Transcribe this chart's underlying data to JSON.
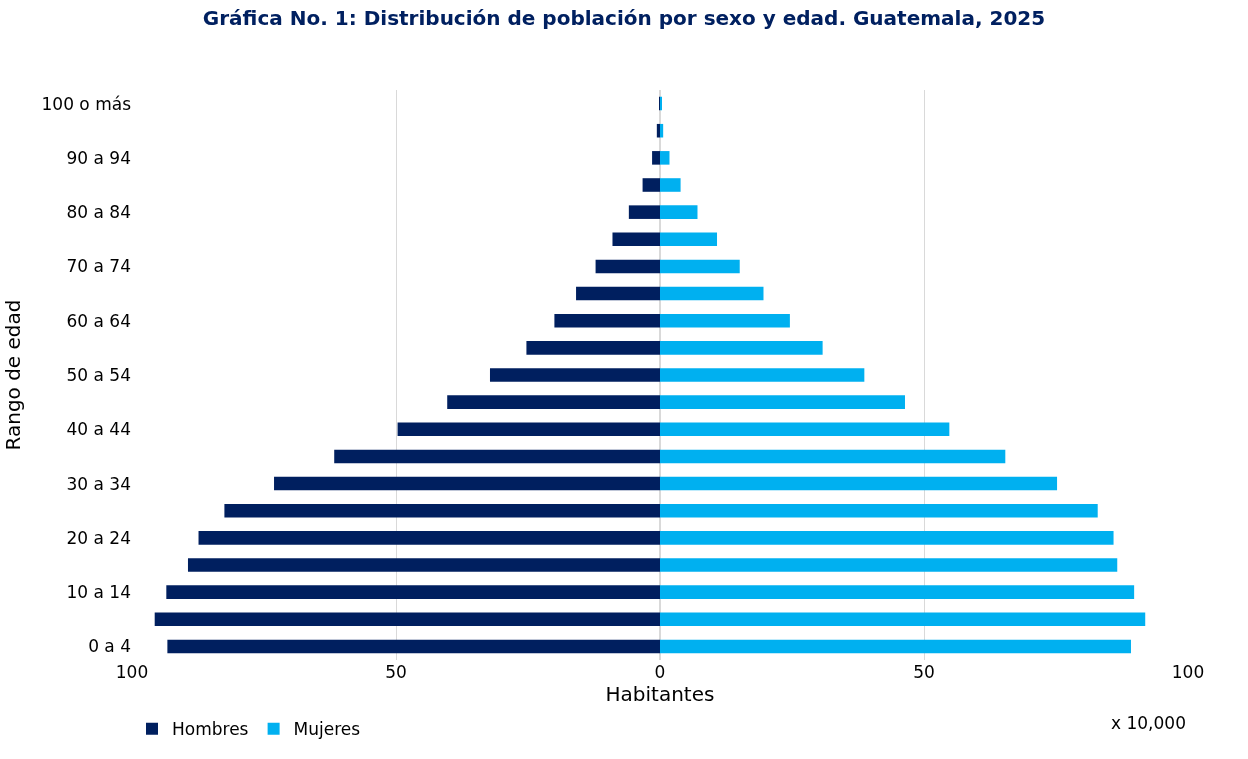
{
  "chart_data": {
    "type": "bar",
    "orientation": "horizontal",
    "title": "Gráfica No. 1: Distribución de población por sexo y edad. Guatemala, 2025",
    "xlabel": "Habitantes",
    "ylabel": "Rango de edad",
    "categories": [
      "100 o más",
      null,
      "90 a 94",
      null,
      "80 a 84",
      null,
      "70 a 74",
      null,
      "60 a 64",
      null,
      "50 a 54",
      null,
      "40 a 44",
      null,
      "30 a 34",
      null,
      "20 a 24",
      null,
      "10 a 14",
      null,
      "0 a 4"
    ],
    "series": [
      {
        "name": "Hombres",
        "color": "#001f5f",
        "values": [
          -0.1,
          -0.6,
          -1.5,
          -3.3,
          -5.9,
          -9.0,
          -12.2,
          -15.9,
          -20.0,
          -25.3,
          -32.2,
          -40.3,
          -49.7,
          -61.7,
          -73.1,
          -82.5,
          -87.4,
          -89.4,
          -93.5,
          -95.7,
          -93.3
        ]
      },
      {
        "name": "Mujeres",
        "color": "#00b0f0",
        "values": [
          0.2,
          0.6,
          1.8,
          3.9,
          7.1,
          10.8,
          15.1,
          19.6,
          24.6,
          30.8,
          38.7,
          46.4,
          54.8,
          65.4,
          75.2,
          82.9,
          85.9,
          86.6,
          89.8,
          91.9,
          89.2
        ]
      }
    ],
    "stacked": true,
    "xlim": [
      -100,
      100
    ],
    "xticks": [
      {
        "value": -100,
        "label": "100"
      },
      {
        "value": -50,
        "label": "50"
      },
      0,
      50,
      100
    ],
    "grid": "x",
    "legend": "bottom left",
    "annotations": [
      "x 10,000"
    ]
  }
}
